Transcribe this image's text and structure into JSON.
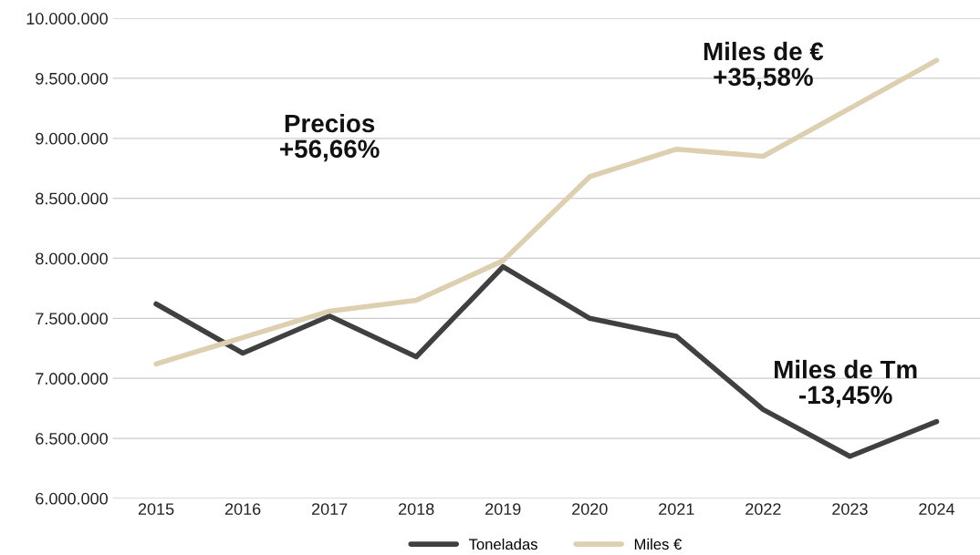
{
  "chart_data": {
    "type": "line",
    "categories": [
      "2015",
      "2016",
      "2017",
      "2018",
      "2019",
      "2020",
      "2021",
      "2022",
      "2023",
      "2024"
    ],
    "series": [
      {
        "name": "Toneladas",
        "color": "#404040",
        "values": [
          7620000,
          7210000,
          7520000,
          7180000,
          7930000,
          7500000,
          7350000,
          6740000,
          6350000,
          6640000
        ]
      },
      {
        "name": "Miles €",
        "color": "#ddd0b0",
        "values": [
          7120000,
          7340000,
          7560000,
          7650000,
          7980000,
          8680000,
          8910000,
          8850000,
          9250000,
          9650000
        ]
      }
    ],
    "ylim": [
      6000000,
      10000000
    ],
    "yticks": [
      {
        "value": 6000000,
        "label": "6.000.000"
      },
      {
        "value": 6500000,
        "label": "6.500.000"
      },
      {
        "value": 7000000,
        "label": "7.000.000"
      },
      {
        "value": 7500000,
        "label": "7.500.000"
      },
      {
        "value": 8000000,
        "label": "8.000.000"
      },
      {
        "value": 8500000,
        "label": "8.500.000"
      },
      {
        "value": 9000000,
        "label": "9.000.000"
      },
      {
        "value": 9500000,
        "label": "9.500.000"
      },
      {
        "value": 10000000,
        "label": "10.000.000"
      }
    ],
    "annotations": [
      "Precios\n+56,66%",
      "Miles de €\n+35,58%",
      "Miles de Tm\n-13,45%"
    ],
    "grid": "y",
    "legend": "bottom",
    "marker": "none",
    "line_style": "solid"
  }
}
